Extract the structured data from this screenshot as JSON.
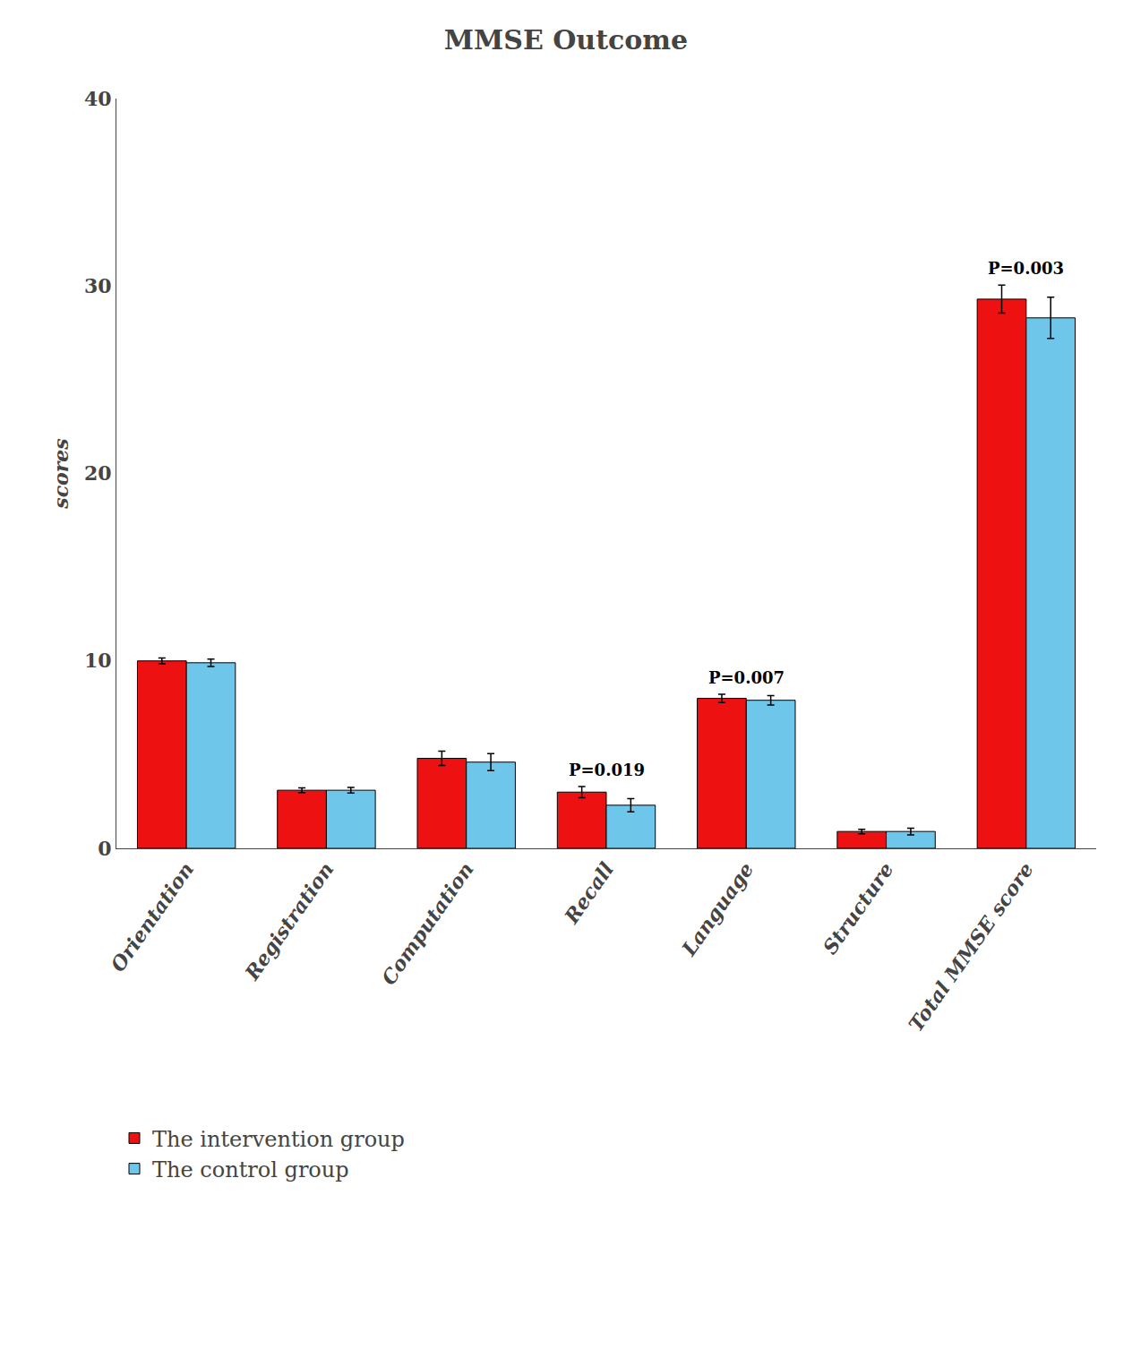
{
  "chart_data": {
    "type": "bar",
    "title": "MMSE Outcome",
    "ylabel": "scores",
    "categories": [
      "Orientation",
      "Registration",
      "Computation",
      "Recall",
      "Language",
      "Structure",
      "Total MMSE score"
    ],
    "series": [
      {
        "name": "The intervention group",
        "color": "#EE1111",
        "values": [
          10.0,
          3.1,
          4.8,
          3.0,
          8.0,
          0.9,
          29.3
        ],
        "errors": [
          0.15,
          0.12,
          0.38,
          0.3,
          0.22,
          0.12,
          0.75
        ]
      },
      {
        "name": "The control group",
        "color": "#6EC6EA",
        "values": [
          9.9,
          3.1,
          4.6,
          2.3,
          7.9,
          0.9,
          28.3
        ],
        "errors": [
          0.2,
          0.15,
          0.45,
          0.35,
          0.25,
          0.18,
          1.1
        ]
      }
    ],
    "ylim": [
      0,
      40
    ],
    "yticks": [
      0,
      10,
      20,
      30,
      40
    ],
    "grid": false,
    "legend": "bottom",
    "annotations": [
      {
        "category": "Recall",
        "text": "P=0.019"
      },
      {
        "category": "Language",
        "text": "P=0.007"
      },
      {
        "category": "Total MMSE score",
        "text": "P=0.003"
      }
    ]
  }
}
